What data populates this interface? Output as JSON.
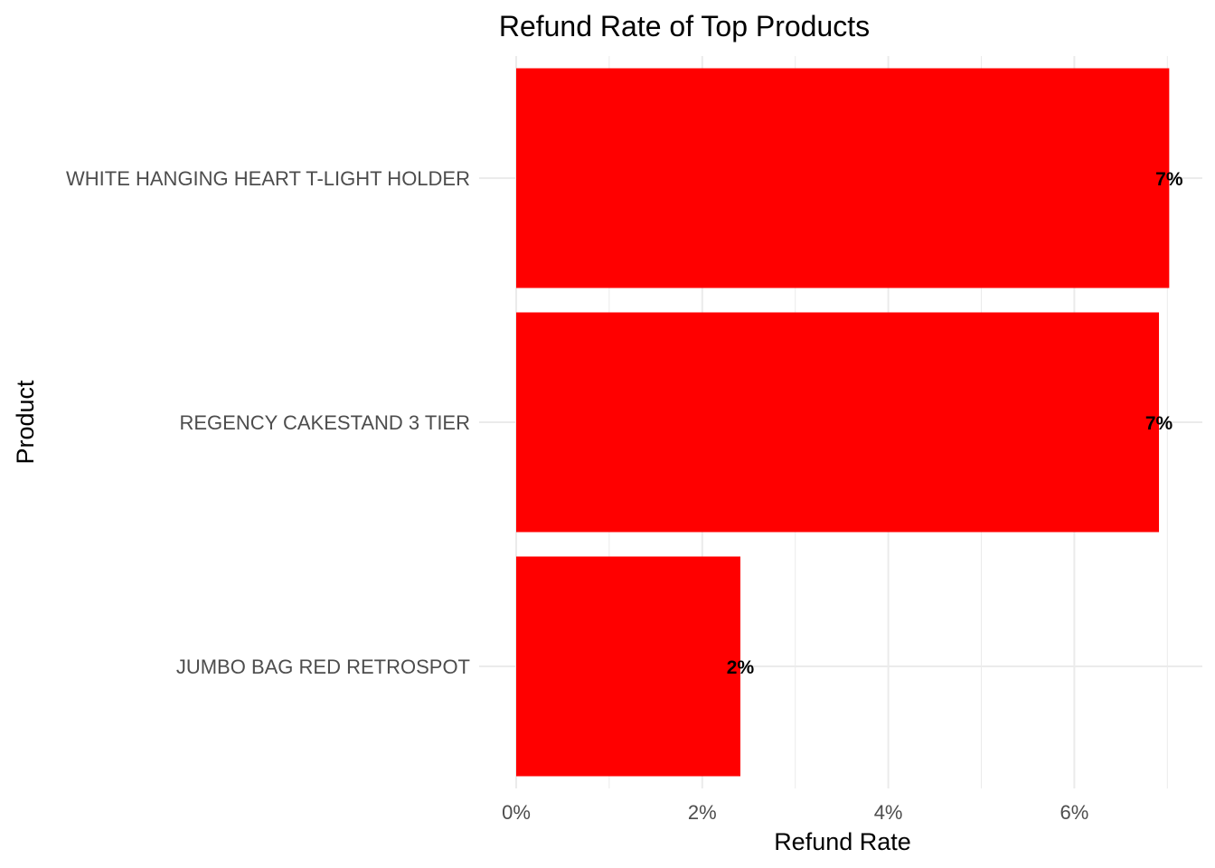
{
  "chart_data": {
    "type": "bar",
    "orientation": "horizontal",
    "title": "Refund Rate of Top Products",
    "xlabel": "Refund Rate",
    "ylabel": "Product",
    "categories": [
      "WHITE HANGING HEART T-LIGHT HOLDER",
      "REGENCY CAKESTAND 3 TIER",
      "JUMBO BAG RED RETROSPOT"
    ],
    "values": [
      7.02,
      6.91,
      2.41
    ],
    "data_labels": [
      "7%",
      "7%",
      "2%"
    ],
    "xlim": [
      0,
      7
    ],
    "x_ticks": [
      0,
      2,
      4,
      6
    ],
    "x_tick_labels": [
      "0%",
      "2%",
      "4%",
      "6%"
    ],
    "grid": true,
    "legend": "none",
    "colors": {
      "bar": "#ff0000",
      "grid": "#ebebeb",
      "tick_text": "#4d4d4d",
      "label_text": "#000000"
    }
  }
}
